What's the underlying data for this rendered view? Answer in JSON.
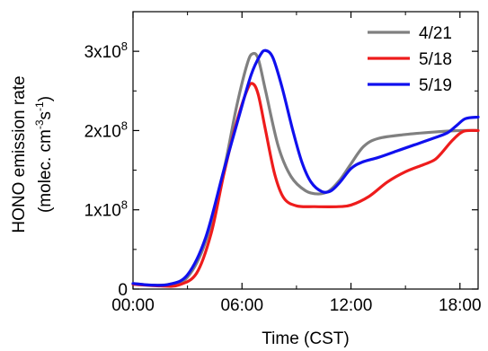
{
  "chart_data": {
    "type": "line",
    "xlabel": "Time (CST)",
    "ylabel_line1": "HONO emission rate",
    "ylabel_line2_prefix": "(molec. cm",
    "ylabel_line2_sup1": "-3",
    "ylabel_line2_mid": "s",
    "ylabel_line2_sup2": "-1",
    "ylabel_line2_suffix": ")",
    "xlim": [
      0,
      19
    ],
    "ylim": [
      0,
      350000000
    ],
    "x_ticks": [
      {
        "value": 0,
        "label": "00:00"
      },
      {
        "value": 6,
        "label": "06:00"
      },
      {
        "value": 12,
        "label": "12:00"
      },
      {
        "value": 18,
        "label": "18:00"
      }
    ],
    "y_ticks": [
      {
        "value": 0,
        "base": "0",
        "exp": ""
      },
      {
        "value": 100000000,
        "base": "1x10",
        "exp": "8"
      },
      {
        "value": 200000000,
        "base": "2x10",
        "exp": "8"
      },
      {
        "value": 300000000,
        "base": "3x10",
        "exp": "8"
      }
    ],
    "legend_position": "top-right",
    "series": [
      {
        "name": "4/21",
        "color": "#808080",
        "points": [
          [
            0,
            7000000.0
          ],
          [
            1,
            5000000.0
          ],
          [
            2,
            6000000.0
          ],
          [
            3,
            15000000.0
          ],
          [
            4,
            60000000.0
          ],
          [
            5,
            150000000.0
          ],
          [
            5.7,
            230000000.0
          ],
          [
            6.3,
            285000000.0
          ],
          [
            6.6,
            297000000.0
          ],
          [
            6.9,
            290000000.0
          ],
          [
            7.3,
            250000000.0
          ],
          [
            8,
            180000000.0
          ],
          [
            8.7,
            142000000.0
          ],
          [
            9.5,
            124000000.0
          ],
          [
            10.2,
            120000000.0
          ],
          [
            10.8,
            124000000.0
          ],
          [
            11.4,
            138000000.0
          ],
          [
            12,
            158000000.0
          ],
          [
            12.7,
            180000000.0
          ],
          [
            13.5,
            190000000.0
          ],
          [
            15,
            195000000.0
          ],
          [
            16.5,
            198000000.0
          ],
          [
            18,
            200000000.0
          ],
          [
            19,
            200000000.0
          ]
        ]
      },
      {
        "name": "5/18",
        "color": "#ee1c1c",
        "points": [
          [
            0,
            6000000.0
          ],
          [
            1.5,
            4000000.0
          ],
          [
            2.5,
            5000000.0
          ],
          [
            3.5,
            20000000.0
          ],
          [
            4.3,
            70000000.0
          ],
          [
            5,
            145000000.0
          ],
          [
            5.7,
            210000000.0
          ],
          [
            6.3,
            252000000.0
          ],
          [
            6.6,
            259000000.0
          ],
          [
            6.9,
            245000000.0
          ],
          [
            7.3,
            200000000.0
          ],
          [
            7.8,
            145000000.0
          ],
          [
            8.3,
            115000000.0
          ],
          [
            9,
            105000000.0
          ],
          [
            10,
            104000000.0
          ],
          [
            11.3,
            104000000.0
          ],
          [
            12,
            106000000.0
          ],
          [
            13,
            117000000.0
          ],
          [
            14,
            135000000.0
          ],
          [
            15,
            148000000.0
          ],
          [
            16,
            157000000.0
          ],
          [
            16.6,
            163000000.0
          ],
          [
            17,
            172000000.0
          ],
          [
            17.6,
            188000000.0
          ],
          [
            18.2,
            199000000.0
          ],
          [
            19,
            200000000.0
          ]
        ]
      },
      {
        "name": "5/19",
        "color": "#1010ee",
        "points": [
          [
            0,
            7000000.0
          ],
          [
            1,
            5000000.0
          ],
          [
            2,
            6000000.0
          ],
          [
            3,
            18000000.0
          ],
          [
            4,
            65000000.0
          ],
          [
            5,
            150000000.0
          ],
          [
            5.8,
            215000000.0
          ],
          [
            6.5,
            270000000.0
          ],
          [
            7,
            295000000.0
          ],
          [
            7.3,
            301000000.0
          ],
          [
            7.7,
            292000000.0
          ],
          [
            8.2,
            255000000.0
          ],
          [
            8.8,
            200000000.0
          ],
          [
            9.3,
            160000000.0
          ],
          [
            9.8,
            135000000.0
          ],
          [
            10.4,
            123000000.0
          ],
          [
            10.9,
            124000000.0
          ],
          [
            11.4,
            135000000.0
          ],
          [
            12,
            152000000.0
          ],
          [
            12.6,
            160000000.0
          ],
          [
            13.5,
            166000000.0
          ],
          [
            14.5,
            174000000.0
          ],
          [
            15.5,
            182000000.0
          ],
          [
            16.5,
            190000000.0
          ],
          [
            17.3,
            197000000.0
          ],
          [
            17.8,
            206000000.0
          ],
          [
            18.3,
            215000000.0
          ],
          [
            19,
            217000000.0
          ]
        ]
      }
    ]
  }
}
